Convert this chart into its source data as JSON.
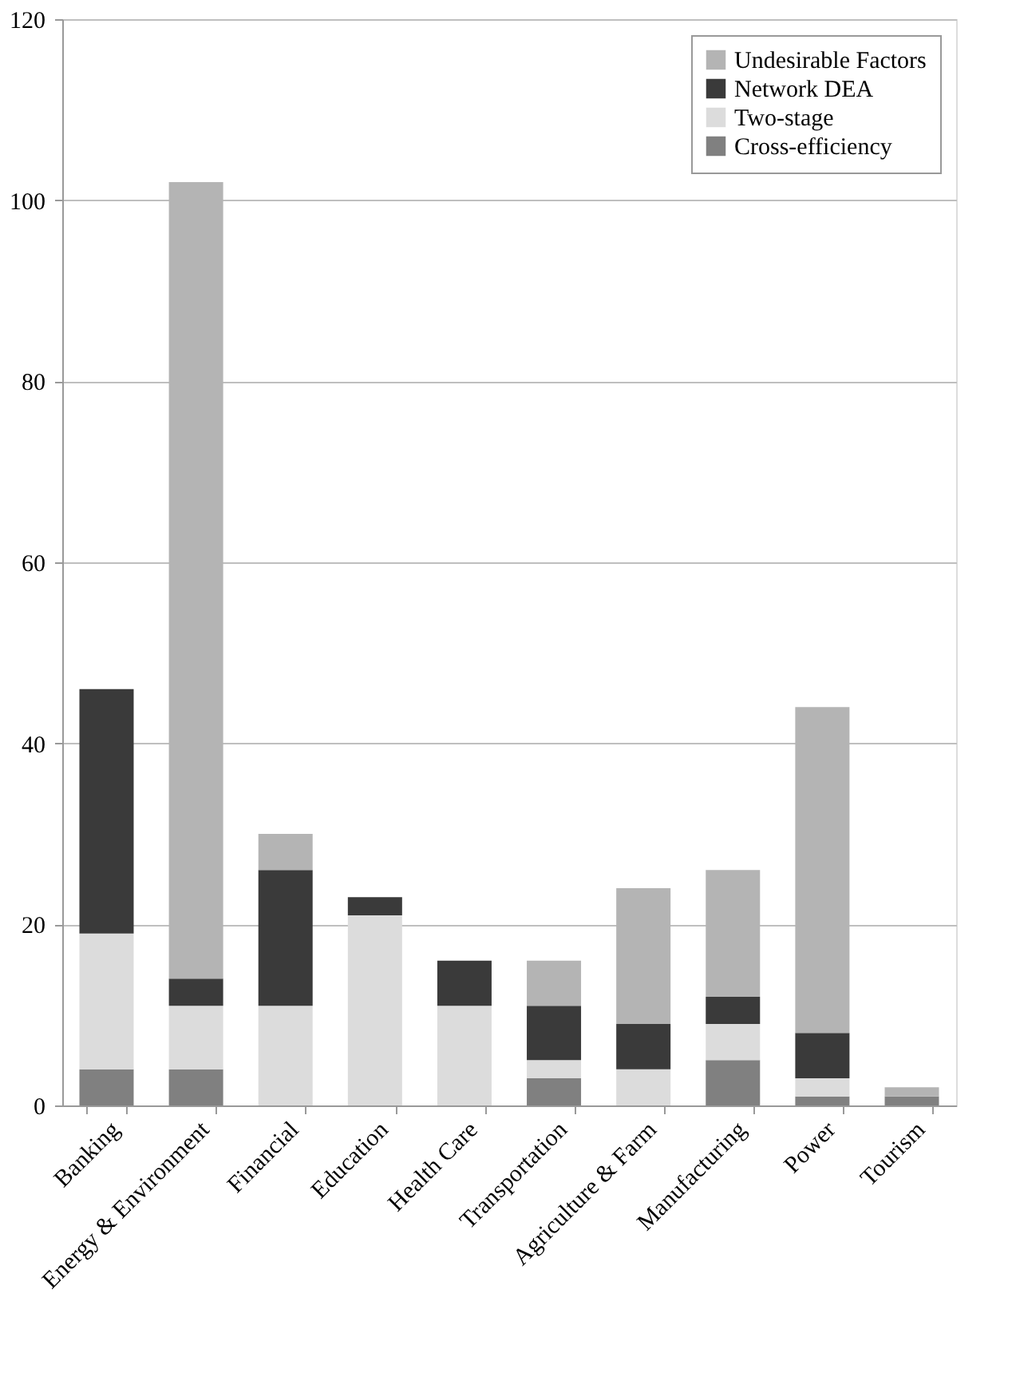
{
  "chart_data": {
    "type": "bar",
    "stacked": true,
    "categories": [
      "Banking",
      "Energy & Environment",
      "Financial",
      "Education",
      "Health Care",
      "Transportation",
      "Agriculture & Farm",
      "Manufacturing",
      "Power",
      "Tourism"
    ],
    "series": [
      {
        "name": "Cross-efficiency",
        "color": "#808080",
        "values": [
          4,
          4,
          0,
          0,
          0,
          3,
          0,
          5,
          1,
          1
        ]
      },
      {
        "name": "Two-stage",
        "color": "#dcdcdc",
        "values": [
          15,
          7,
          11,
          21,
          11,
          2,
          4,
          4,
          2,
          0
        ]
      },
      {
        "name": "Network DEA",
        "color": "#3a3a3a",
        "values": [
          27,
          3,
          15,
          2,
          5,
          6,
          5,
          3,
          5,
          0
        ]
      },
      {
        "name": "Undesirable Factors",
        "color": "#b4b4b4",
        "values": [
          0,
          88,
          4,
          0,
          0,
          5,
          15,
          14,
          36,
          1
        ]
      }
    ],
    "ylim": [
      0,
      120
    ],
    "yticks": [
      0,
      20,
      40,
      60,
      80,
      100,
      120
    ],
    "grid": "y",
    "legend": "top right"
  }
}
